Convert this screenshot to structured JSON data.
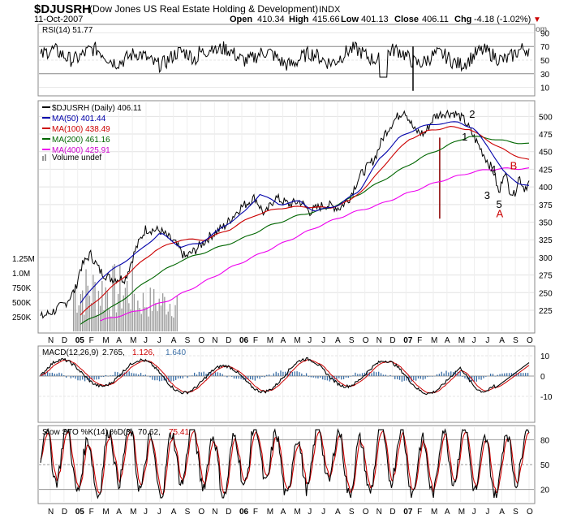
{
  "header": {
    "symbol": "$DJUSRH",
    "name": "(Dow Jones US Real Estate Holding & Development)",
    "exchange": "INDX",
    "date": "11-Oct-2007",
    "open_label": "Open",
    "open": "410.34",
    "high_label": "High",
    "high": "415.66",
    "low_label": "Low",
    "low": "401.13",
    "close_label": "Close",
    "close": "406.11",
    "chg_label": "Chg",
    "chg": "-4.18 (-1.02%)",
    "chg_arrow": "▼",
    "watermark": "@ StockCharts.com"
  },
  "colors": {
    "price": "#000000",
    "ma50": "#0000aa",
    "ma100": "#cc0000",
    "ma200": "#006600",
    "ma400": "#ee00ee",
    "volume": "#999999",
    "rsi_fill": "#556b55",
    "macd_hist": "#3a6ea5",
    "signal": "#cc0000",
    "annotation_black": "#000000",
    "annotation_red": "#cc0000"
  },
  "chart_data": [
    {
      "type": "line",
      "title": "RSI(14) 51.77",
      "panel": "rsi",
      "ylim": [
        0,
        100
      ],
      "yticks": [
        10,
        30,
        50,
        70,
        90
      ],
      "current": 51.77
    },
    {
      "type": "line",
      "title": "$DJUSRH (Daily) 406.11",
      "panel": "price",
      "ylim": [
        195,
        520
      ],
      "yticks": [
        225,
        250,
        275,
        300,
        325,
        350,
        375,
        400,
        425,
        450,
        475,
        500
      ],
      "xlabels": [
        "N",
        "D",
        "05",
        "F",
        "M",
        "A",
        "M",
        "J",
        "J",
        "A",
        "S",
        "O",
        "N",
        "D",
        "06",
        "F",
        "M",
        "A",
        "M",
        "J",
        "J",
        "A",
        "S",
        "O",
        "N",
        "D",
        "07",
        "F",
        "M",
        "A",
        "M",
        "J",
        "J",
        "A",
        "S",
        "O"
      ],
      "volume_ticks": [
        "1.25M",
        "1.0M",
        "750K",
        "500K",
        "250K"
      ],
      "legend": [
        {
          "label": "$DJUSRH (Daily) 406.11",
          "key": "price"
        },
        {
          "label": "MA(50) 401.44",
          "key": "ma50"
        },
        {
          "label": "MA(100) 438.49",
          "key": "ma100"
        },
        {
          "label": "MA(200) 461.16",
          "key": "ma200"
        },
        {
          "label": "MA(400) 425.91",
          "key": "ma400"
        },
        {
          "label": "Volume undef",
          "key": "volume"
        }
      ],
      "price_anchors": [
        [
          0,
          215
        ],
        [
          0.03,
          225
        ],
        [
          0.05,
          235
        ],
        [
          0.07,
          255
        ],
        [
          0.08,
          285
        ],
        [
          0.1,
          305
        ],
        [
          0.12,
          280
        ],
        [
          0.14,
          270
        ],
        [
          0.17,
          270
        ],
        [
          0.19,
          310
        ],
        [
          0.21,
          340
        ],
        [
          0.24,
          338
        ],
        [
          0.27,
          320
        ],
        [
          0.29,
          300
        ],
        [
          0.31,
          310
        ],
        [
          0.34,
          330
        ],
        [
          0.37,
          345
        ],
        [
          0.4,
          370
        ],
        [
          0.43,
          385
        ],
        [
          0.45,
          360
        ],
        [
          0.47,
          385
        ],
        [
          0.5,
          375
        ],
        [
          0.52,
          380
        ],
        [
          0.54,
          365
        ],
        [
          0.57,
          375
        ],
        [
          0.6,
          370
        ],
        [
          0.62,
          385
        ],
        [
          0.64,
          415
        ],
        [
          0.67,
          440
        ],
        [
          0.69,
          475
        ],
        [
          0.71,
          495
        ],
        [
          0.73,
          510
        ],
        [
          0.75,
          480
        ],
        [
          0.77,
          475
        ],
        [
          0.79,
          500
        ],
        [
          0.81,
          505
        ],
        [
          0.83,
          505
        ],
        [
          0.85,
          495
        ],
        [
          0.87,
          470
        ],
        [
          0.89,
          445
        ],
        [
          0.91,
          420
        ],
        [
          0.92,
          388
        ],
        [
          0.93,
          425
        ],
        [
          0.94,
          398
        ],
        [
          0.95,
          388
        ],
        [
          0.96,
          415
        ],
        [
          0.97,
          398
        ],
        [
          0.98,
          406
        ]
      ],
      "ma50_anchors": [
        [
          0.08,
          235
        ],
        [
          0.12,
          270
        ],
        [
          0.16,
          290
        ],
        [
          0.2,
          310
        ],
        [
          0.24,
          335
        ],
        [
          0.28,
          315
        ],
        [
          0.32,
          320
        ],
        [
          0.37,
          345
        ],
        [
          0.41,
          365
        ],
        [
          0.44,
          390
        ],
        [
          0.48,
          375
        ],
        [
          0.52,
          380
        ],
        [
          0.55,
          365
        ],
        [
          0.6,
          375
        ],
        [
          0.64,
          395
        ],
        [
          0.68,
          440
        ],
        [
          0.72,
          470
        ],
        [
          0.76,
          485
        ],
        [
          0.8,
          490
        ],
        [
          0.84,
          492
        ],
        [
          0.87,
          482
        ],
        [
          0.9,
          455
        ],
        [
          0.93,
          420
        ],
        [
          0.96,
          405
        ],
        [
          0.98,
          401
        ]
      ],
      "ma100_anchors": [
        [
          0.08,
          218
        ],
        [
          0.13,
          250
        ],
        [
          0.18,
          280
        ],
        [
          0.23,
          310
        ],
        [
          0.28,
          325
        ],
        [
          0.33,
          325
        ],
        [
          0.38,
          340
        ],
        [
          0.43,
          360
        ],
        [
          0.48,
          370
        ],
        [
          0.53,
          372
        ],
        [
          0.58,
          370
        ],
        [
          0.62,
          380
        ],
        [
          0.66,
          405
        ],
        [
          0.7,
          440
        ],
        [
          0.74,
          468
        ],
        [
          0.78,
          480
        ],
        [
          0.82,
          485
        ],
        [
          0.86,
          482
        ],
        [
          0.9,
          465
        ],
        [
          0.94,
          448
        ],
        [
          0.98,
          438
        ]
      ],
      "ma200_anchors": [
        [
          0.08,
          205
        ],
        [
          0.15,
          232
        ],
        [
          0.22,
          270
        ],
        [
          0.28,
          295
        ],
        [
          0.34,
          310
        ],
        [
          0.4,
          325
        ],
        [
          0.46,
          345
        ],
        [
          0.52,
          360
        ],
        [
          0.58,
          370
        ],
        [
          0.64,
          390
        ],
        [
          0.7,
          415
        ],
        [
          0.76,
          440
        ],
        [
          0.82,
          460
        ],
        [
          0.86,
          472
        ],
        [
          0.9,
          469
        ],
        [
          0.94,
          464
        ],
        [
          0.98,
          461
        ]
      ],
      "ma400_anchors": [
        [
          0.12,
          210
        ],
        [
          0.2,
          225
        ],
        [
          0.26,
          240
        ],
        [
          0.32,
          262
        ],
        [
          0.38,
          285
        ],
        [
          0.44,
          305
        ],
        [
          0.5,
          325
        ],
        [
          0.56,
          345
        ],
        [
          0.62,
          362
        ],
        [
          0.68,
          375
        ],
        [
          0.74,
          392
        ],
        [
          0.8,
          408
        ],
        [
          0.86,
          420
        ],
        [
          0.9,
          425
        ],
        [
          0.94,
          426
        ],
        [
          0.98,
          425.91
        ]
      ],
      "annotations": [
        {
          "text": "1",
          "price": 466,
          "xf": 0.845,
          "color": "black"
        },
        {
          "text": "2",
          "price": 498,
          "xf": 0.86,
          "color": "black"
        },
        {
          "text": "3",
          "price": 383,
          "xf": 0.89,
          "color": "black"
        },
        {
          "text": "4",
          "price": 420,
          "xf": 0.902,
          "color": "black"
        },
        {
          "text": "5",
          "price": 370,
          "xf": 0.914,
          "color": "black"
        },
        {
          "text": "A",
          "price": 357,
          "xf": 0.914,
          "color": "red"
        },
        {
          "text": "B",
          "price": 425,
          "xf": 0.942,
          "color": "red"
        }
      ]
    },
    {
      "type": "line",
      "title": "MACD(12,26,9)",
      "panel": "macd",
      "values": {
        "macd": 2.765,
        "signal": 1.126,
        "hist": 1.64
      },
      "ylim": [
        -22,
        14
      ],
      "yticks": [
        -10,
        0,
        10
      ]
    },
    {
      "type": "line",
      "title": "Slow STO %K(14) %D(3)",
      "panel": "sto",
      "values": {
        "k": 70.62,
        "d": 75.41
      },
      "ylim": [
        5,
        95
      ],
      "yticks": [
        20,
        50,
        80
      ]
    }
  ],
  "panels_text": {
    "rsi_title": "RSI(14) 51.77",
    "macd_title": "MACD(12,26,9)",
    "macd_v1": "2.765,",
    "macd_v2": "1.126,",
    "macd_v3": "1.640",
    "sto_title": "Slow STO %K(14) %D(3)",
    "sto_v1": "70.62,",
    "sto_v2": "75.41"
  }
}
